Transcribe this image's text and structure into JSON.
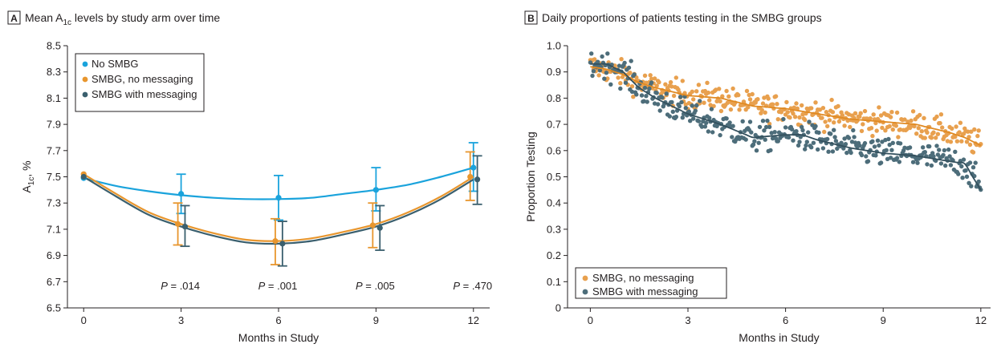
{
  "panels": [
    {
      "letter": "A",
      "title": "Mean A",
      "title_sub": "1c",
      "title_rest": " levels by study arm over time"
    },
    {
      "letter": "B",
      "title": "Daily proportions of patients testing in the SMBG groups"
    }
  ],
  "chart_data": [
    {
      "type": "line",
      "xlabel": "Months in Study",
      "ylabel": "A",
      "ylabel_sub": "1c",
      "ylabel_rest": ", %",
      "xlim": [
        -0.5,
        12.5
      ],
      "ylim": [
        6.5,
        8.5
      ],
      "xticks": [
        0,
        3,
        6,
        9,
        12
      ],
      "yticks": [
        6.5,
        6.7,
        6.9,
        7.1,
        7.3,
        7.5,
        7.7,
        7.9,
        8.1,
        8.3,
        8.5
      ],
      "ytick_labels": [
        "6.5",
        "6.7",
        "6.9",
        "7.1",
        "7.3",
        "7.5",
        "7.7",
        "7.9",
        "8.1",
        "8.3",
        "8.5"
      ],
      "grid": false,
      "legend_position": "top-left",
      "series": [
        {
          "name": "No SMBG",
          "color": "#1aa3dc",
          "x": [
            0,
            3,
            6,
            9,
            12
          ],
          "y": [
            7.49,
            7.37,
            7.34,
            7.4,
            7.57
          ],
          "ci_low": [
            null,
            7.22,
            7.17,
            7.24,
            7.39
          ],
          "ci_high": [
            null,
            7.52,
            7.51,
            7.57,
            7.76
          ],
          "curve": [
            [
              0,
              7.49
            ],
            [
              1,
              7.43
            ],
            [
              2,
              7.39
            ],
            [
              3,
              7.36
            ],
            [
              4,
              7.34
            ],
            [
              5,
              7.33
            ],
            [
              6,
              7.33
            ],
            [
              7,
              7.34
            ],
            [
              8,
              7.37
            ],
            [
              9,
              7.4
            ],
            [
              10,
              7.44
            ],
            [
              11,
              7.5
            ],
            [
              12,
              7.57
            ]
          ]
        },
        {
          "name": "SMBG, no messaging",
          "color": "#e8962e",
          "x": [
            0,
            3,
            6,
            9,
            12
          ],
          "y": [
            7.52,
            7.14,
            7.01,
            7.13,
            7.5
          ],
          "ci_low": [
            null,
            6.98,
            6.83,
            6.96,
            7.32
          ],
          "ci_high": [
            null,
            7.3,
            7.18,
            7.3,
            7.69
          ],
          "curve": [
            [
              0,
              7.52
            ],
            [
              1,
              7.37
            ],
            [
              2,
              7.23
            ],
            [
              3,
              7.14
            ],
            [
              4,
              7.07
            ],
            [
              5,
              7.02
            ],
            [
              6,
              7.01
            ],
            [
              7,
              7.03
            ],
            [
              8,
              7.08
            ],
            [
              9,
              7.14
            ],
            [
              10,
              7.23
            ],
            [
              11,
              7.35
            ],
            [
              12,
              7.5
            ]
          ]
        },
        {
          "name": "SMBG with messaging",
          "color": "#3a5f6e",
          "x": [
            0,
            3,
            6,
            9,
            12
          ],
          "y": [
            7.5,
            7.12,
            6.99,
            7.11,
            7.48
          ],
          "ci_low": [
            null,
            6.97,
            6.82,
            6.94,
            7.29
          ],
          "ci_high": [
            null,
            7.28,
            7.16,
            7.28,
            7.66
          ],
          "curve": [
            [
              0,
              7.5
            ],
            [
              1,
              7.35
            ],
            [
              2,
              7.21
            ],
            [
              3,
              7.12
            ],
            [
              4,
              7.05
            ],
            [
              5,
              7.0
            ],
            [
              6,
              6.99
            ],
            [
              7,
              7.01
            ],
            [
              8,
              7.06
            ],
            [
              9,
              7.12
            ],
            [
              10,
              7.21
            ],
            [
              11,
              7.33
            ],
            [
              12,
              7.48
            ]
          ]
        }
      ],
      "annotations": [
        {
          "prefix": "P",
          "text": " = .014",
          "x": 3
        },
        {
          "prefix": "P",
          "text": " = .001",
          "x": 6
        },
        {
          "prefix": "P",
          "text": " = .005",
          "x": 9
        },
        {
          "prefix": "P",
          "text": " = .470",
          "x": 12
        }
      ],
      "annotation_y": 6.64
    },
    {
      "type": "scatter",
      "xlabel": "Months in Study",
      "ylabel": "Proportion Testing",
      "xlim": [
        -0.7,
        12.3
      ],
      "ylim": [
        0,
        1.0
      ],
      "xticks": [
        0,
        3,
        6,
        9,
        12
      ],
      "yticks": [
        0,
        0.1,
        0.2,
        0.3,
        0.4,
        0.5,
        0.6,
        0.7,
        0.8,
        0.9,
        1.0
      ],
      "ytick_labels": [
        "0",
        "0.1",
        "0.2",
        "0.3",
        "0.4",
        "0.5",
        "0.6",
        "0.7",
        "0.8",
        "0.9",
        "1.0"
      ],
      "grid": false,
      "legend_position": "bottom-left",
      "points_per_series": 365,
      "series": [
        {
          "name": "SMBG, no messaging",
          "color": "#e8a04e",
          "line_color": "#e08a23",
          "trend": [
            [
              0,
              0.92
            ],
            [
              0.5,
              0.91
            ],
            [
              1,
              0.89
            ],
            [
              1.5,
              0.86
            ],
            [
              2,
              0.84
            ],
            [
              3,
              0.81
            ],
            [
              4,
              0.8
            ],
            [
              5,
              0.77
            ],
            [
              6,
              0.76
            ],
            [
              7,
              0.74
            ],
            [
              8,
              0.72
            ],
            [
              9,
              0.71
            ],
            [
              10,
              0.7
            ],
            [
              11,
              0.67
            ],
            [
              11.5,
              0.65
            ],
            [
              12,
              0.62
            ]
          ],
          "noise": 0.025
        },
        {
          "name": "SMBG with messaging",
          "color": "#4d6d7a",
          "line_color": "#33505d",
          "trend": [
            [
              0,
              0.93
            ],
            [
              0.5,
              0.93
            ],
            [
              1,
              0.9
            ],
            [
              1.5,
              0.84
            ],
            [
              2,
              0.8
            ],
            [
              3,
              0.74
            ],
            [
              4,
              0.7
            ],
            [
              5,
              0.65
            ],
            [
              6,
              0.66
            ],
            [
              6.5,
              0.66
            ],
            [
              7,
              0.64
            ],
            [
              8,
              0.61
            ],
            [
              8.5,
              0.6
            ],
            [
              9,
              0.59
            ],
            [
              10,
              0.58
            ],
            [
              11,
              0.56
            ],
            [
              11.5,
              0.55
            ],
            [
              12,
              0.45
            ]
          ],
          "noise": 0.028
        }
      ]
    }
  ]
}
